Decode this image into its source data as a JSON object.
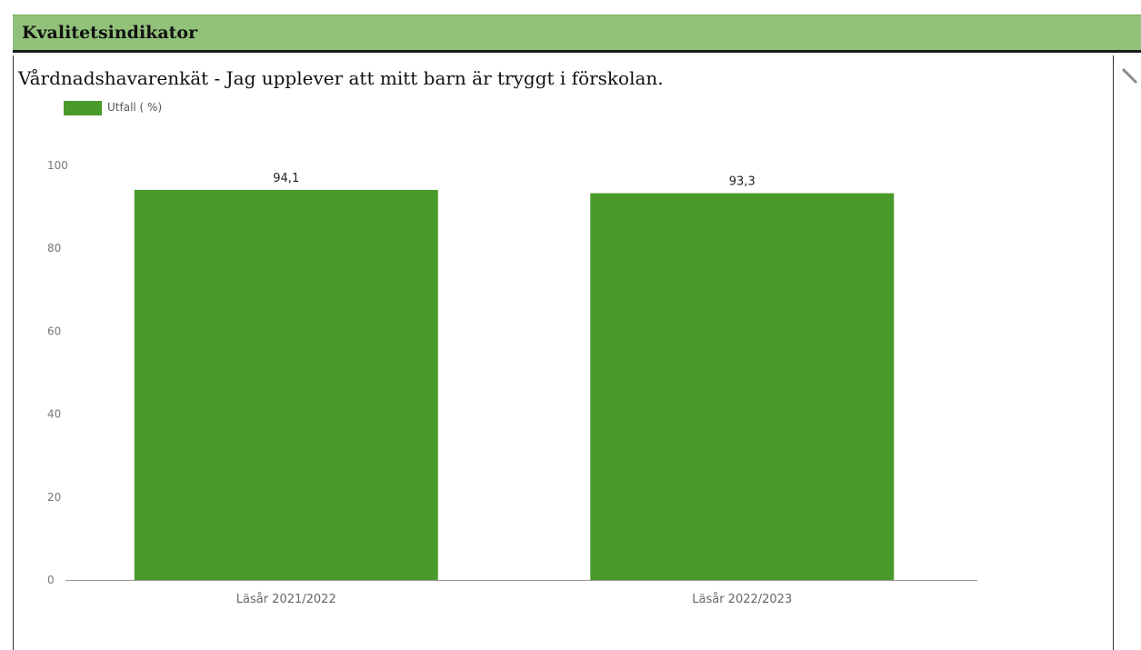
{
  "header": {
    "title": "Kvalitetsindikator"
  },
  "colors": {
    "header_bg": "#92c27a",
    "bar": "#4a9a2b",
    "axis": "#9a9a9a"
  },
  "chart_data": {
    "type": "bar",
    "title": "Vårdnadshavarenkät - Jag upplever att mitt barn är tryggt i förskolan.",
    "legend": {
      "placement": "top-left"
    },
    "categories": [
      "Läsår 2021/2022",
      "Läsår 2022/2023"
    ],
    "series": [
      {
        "name": "Utfall ( %)",
        "values": [
          94.1,
          93.3
        ],
        "labels": [
          "94,1",
          "93,3"
        ]
      }
    ],
    "yticks": [
      0,
      20,
      40,
      60,
      80,
      100
    ],
    "ylim": [
      0,
      100
    ],
    "grid": false
  },
  "side": {
    "icon": "pencil-icon"
  }
}
